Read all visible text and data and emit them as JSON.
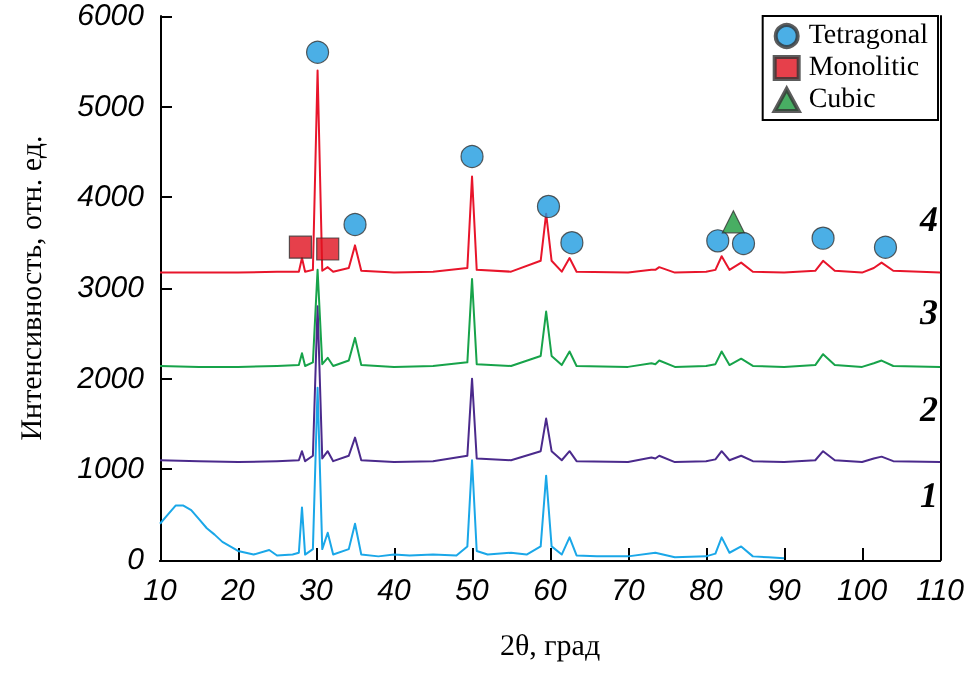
{
  "chart_data": {
    "type": "line",
    "xlabel": "2θ, град",
    "ylabel": "Интенсивность, отн. ед.",
    "xlim": [
      10,
      110
    ],
    "xticks": [
      10,
      20,
      30,
      40,
      50,
      60,
      70,
      80,
      90,
      100,
      110
    ],
    "ylim": [
      0,
      6000
    ],
    "yticks": [
      0,
      1000,
      2000,
      3000,
      4000,
      5000,
      6000
    ],
    "grid": false,
    "legend": "top right",
    "line_style": "solid",
    "series": [
      {
        "color": "#1aa7e8",
        "x": [
          10,
          11,
          12,
          13,
          14,
          15,
          16,
          17,
          18,
          19,
          20,
          22,
          24,
          25,
          27,
          27.8,
          28.2,
          28.6,
          29.6,
          30.2,
          30.8,
          31.5,
          32.2,
          34.2,
          35,
          35.8,
          38,
          40,
          42,
          45,
          48,
          49.4,
          50,
          50.6,
          52,
          55,
          57,
          58.8,
          59.5,
          60.2,
          61.5,
          62.5,
          63.4,
          66,
          70,
          73.5,
          76,
          80,
          81.2,
          82,
          83,
          84.5,
          86,
          88,
          90
        ],
        "values": [
          400,
          500,
          600,
          600,
          550,
          450,
          350,
          280,
          200,
          150,
          100,
          60,
          110,
          50,
          60,
          80,
          580,
          60,
          120,
          1900,
          120,
          300,
          60,
          120,
          400,
          60,
          40,
          60,
          50,
          60,
          50,
          150,
          1100,
          100,
          60,
          80,
          60,
          150,
          930,
          150,
          60,
          250,
          50,
          40,
          40,
          80,
          30,
          40,
          70,
          250,
          80,
          150,
          40,
          30,
          20
        ]
      },
      {
        "color": "#4b2a8c",
        "x": [
          10,
          15,
          20,
          25,
          27.8,
          28.2,
          28.6,
          29.6,
          30.2,
          30.8,
          31.5,
          32.2,
          34.2,
          35,
          35.8,
          40,
          45,
          49.4,
          50,
          50.6,
          55,
          58.8,
          59.5,
          60.2,
          61.5,
          62.5,
          63.4,
          70,
          73,
          73.5,
          74,
          76,
          80,
          81.2,
          82,
          83,
          84.5,
          86,
          90,
          94,
          95,
          96.5,
          100,
          101.5,
          102.5,
          104,
          110
        ],
        "values": [
          1100,
          1090,
          1080,
          1090,
          1100,
          1200,
          1090,
          1150,
          2800,
          1120,
          1200,
          1090,
          1150,
          1350,
          1100,
          1080,
          1090,
          1150,
          2000,
          1120,
          1100,
          1200,
          1560,
          1200,
          1100,
          1200,
          1090,
          1080,
          1130,
          1120,
          1150,
          1080,
          1090,
          1110,
          1200,
          1100,
          1150,
          1090,
          1080,
          1100,
          1200,
          1100,
          1080,
          1120,
          1140,
          1090,
          1080
        ]
      },
      {
        "color": "#17a34a",
        "x": [
          10,
          15,
          20,
          25,
          27.8,
          28.2,
          28.6,
          29.6,
          30.2,
          30.8,
          31.5,
          32.2,
          34.2,
          35,
          35.8,
          40,
          45,
          49.4,
          50,
          50.6,
          55,
          58.8,
          59.5,
          60.2,
          61.5,
          62.5,
          63.4,
          70,
          73,
          73.5,
          74,
          76,
          80,
          81.2,
          82,
          83,
          84.5,
          86,
          90,
          94,
          95,
          96.5,
          100,
          101.5,
          102.5,
          104,
          110
        ],
        "values": [
          2140,
          2130,
          2130,
          2140,
          2150,
          2280,
          2140,
          2180,
          3200,
          2160,
          2230,
          2140,
          2200,
          2450,
          2150,
          2130,
          2140,
          2180,
          3100,
          2160,
          2140,
          2250,
          2740,
          2250,
          2150,
          2300,
          2140,
          2130,
          2170,
          2160,
          2200,
          2130,
          2140,
          2160,
          2300,
          2150,
          2220,
          2140,
          2130,
          2150,
          2270,
          2150,
          2130,
          2170,
          2200,
          2140,
          2130
        ]
      },
      {
        "color": "#e8152b",
        "x": [
          10,
          15,
          20,
          25,
          27.8,
          28.2,
          28.6,
          29.6,
          30.2,
          30.8,
          31.5,
          32.2,
          34.2,
          35,
          35.8,
          40,
          45,
          49.4,
          50,
          50.6,
          55,
          58.8,
          59.5,
          60.2,
          61.5,
          62.5,
          63.4,
          70,
          73,
          73.5,
          74,
          76,
          80,
          81.2,
          82,
          83,
          84.5,
          86,
          90,
          94,
          95,
          96.5,
          100,
          101.5,
          102.5,
          104,
          110
        ],
        "values": [
          3170,
          3170,
          3170,
          3180,
          3180,
          3330,
          3180,
          3200,
          5400,
          3190,
          3230,
          3180,
          3220,
          3470,
          3190,
          3170,
          3180,
          3220,
          4230,
          3200,
          3180,
          3300,
          3820,
          3300,
          3180,
          3330,
          3180,
          3170,
          3200,
          3200,
          3230,
          3170,
          3180,
          3200,
          3350,
          3200,
          3280,
          3180,
          3170,
          3190,
          3300,
          3190,
          3170,
          3220,
          3280,
          3190,
          3170
        ]
      },
      {
        "type": "scatter",
        "name": "Tetragonal",
        "marker": "circle",
        "color": "#1e9be0",
        "x": [
          30.2,
          35,
          50,
          59.8,
          62.8,
          81.5,
          84.8,
          95,
          103
        ],
        "values": [
          5600,
          3700,
          4450,
          3900,
          3500,
          3520,
          3490,
          3550,
          3450
        ]
      },
      {
        "type": "scatter",
        "name": "Monolitic",
        "marker": "square",
        "color": "#e0101e",
        "x": [
          28,
          31.5
        ],
        "values": [
          3450,
          3430
        ]
      },
      {
        "type": "scatter",
        "name": "Cubic",
        "marker": "triangle",
        "color": "#1a9a3c",
        "x": [
          83.5
        ],
        "values": [
          3730
        ]
      }
    ],
    "annotations": [
      "4",
      "3",
      "2",
      "1"
    ]
  }
}
